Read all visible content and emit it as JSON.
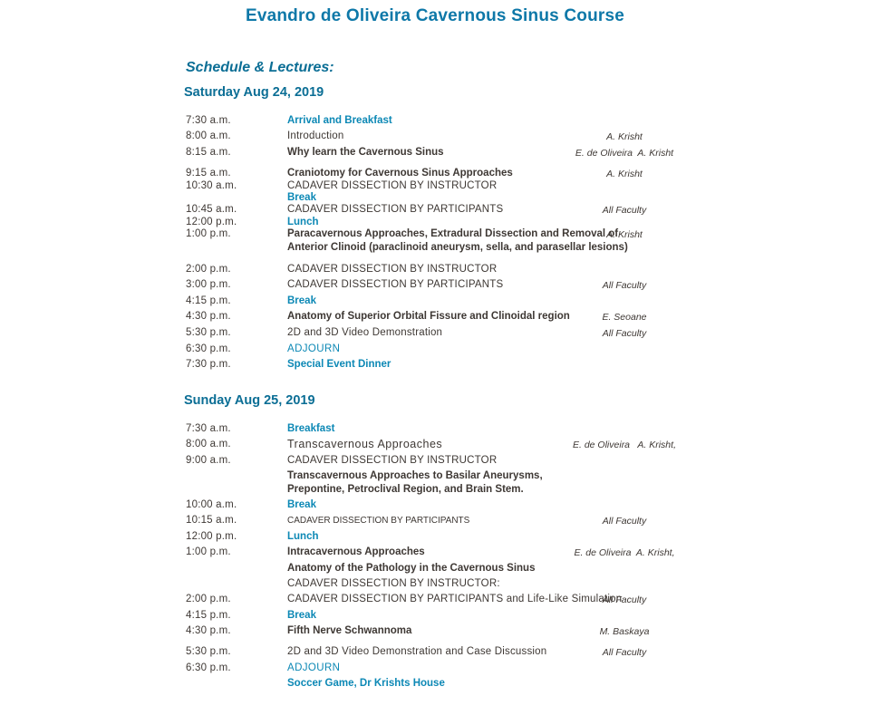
{
  "header": {
    "title": "Evandro de Oliveira Cavernous Sinus Course",
    "subtitle": "Schedule & Lectures:"
  },
  "colors": {
    "title_teal": "#0E78A8",
    "heading_teal": "#0B6E95",
    "accent_teal": "#0C88B5",
    "body_text": "#3E3834"
  },
  "days": [
    {
      "heading": "Saturday Aug 24, 2019",
      "rows": [
        {
          "time": "7:30 a.m.",
          "lines": [
            {
              "text": "Arrival and Breakfast",
              "style": "tealBold"
            }
          ],
          "faculty": ""
        },
        {
          "time": "8:00 a.m.",
          "lines": [
            {
              "text": "Introduction",
              "style": "plain"
            }
          ],
          "faculty": "A. Krisht"
        },
        {
          "time": "8:15 a.m.",
          "lines": [
            {
              "text": "Why learn the Cavernous Sinus",
              "style": "bold"
            }
          ],
          "faculty": "E. de Oliveira  A. Krisht"
        },
        {
          "time": "9:15 a.m.",
          "lines": [
            {
              "text": "Craniotomy for Cavernous Sinus Approaches",
              "style": "bold"
            }
          ],
          "faculty": "A. Krisht",
          "spacing": "gap"
        },
        {
          "time": "10:30 a.m.",
          "lines": [
            {
              "text": "CADAVER DISSECTION BY INSTRUCTOR",
              "style": "plain"
            }
          ],
          "faculty": "",
          "spacing": "tight"
        },
        {
          "time": "",
          "lines": [
            {
              "text": "Break",
              "style": "tealBold"
            }
          ],
          "faculty": "",
          "spacing": "tight"
        },
        {
          "time": "10:45 a.m.",
          "lines": [
            {
              "text": "CADAVER DISSECTION BY PARTICIPANTS",
              "style": "plain"
            }
          ],
          "faculty": "All Faculty",
          "spacing": "tight"
        },
        {
          "time": "12:00 p.m.",
          "lines": [
            {
              "text": "Lunch",
              "style": "tealBold"
            }
          ],
          "faculty": "",
          "spacing": "tight"
        },
        {
          "time": "1:00 p.m.",
          "lines": [
            {
              "text": "Paracavernous Approaches, Extradural Dissection and Removal of",
              "style": "bold"
            },
            {
              "text": "Anterior Clinoid (paraclinoid aneurysm, sella, and parasellar lesions)",
              "style": "bold"
            }
          ],
          "faculty": "A. Krisht",
          "spacing": "tight"
        },
        {
          "time": "2:00 p.m.",
          "lines": [
            {
              "text": "CADAVER DISSECTION BY INSTRUCTOR",
              "style": "plain"
            }
          ],
          "faculty": "",
          "spacing": "gap-lg"
        },
        {
          "time": "3:00 p.m.",
          "lines": [
            {
              "text": "CADAVER DISSECTION BY PARTICIPANTS",
              "style": "plain"
            }
          ],
          "faculty": "All Faculty"
        },
        {
          "time": "4:15 p.m.",
          "lines": [
            {
              "text": "Break",
              "style": "tealBold"
            }
          ],
          "faculty": ""
        },
        {
          "time": "4:30 p.m.",
          "lines": [
            {
              "text": "Anatomy of Superior Orbital Fissure and Clinoidal region",
              "style": "bold"
            }
          ],
          "faculty": "E. Seoane"
        },
        {
          "time": "5:30 p.m.",
          "lines": [
            {
              "text": "2D and 3D Video Demonstration",
              "style": "plain"
            }
          ],
          "faculty": "All Faculty"
        },
        {
          "time": "6:30 p.m.",
          "lines": [
            {
              "text": "ADJOURN",
              "style": "teal"
            }
          ],
          "faculty": ""
        },
        {
          "time": "7:30 p.m.",
          "lines": [
            {
              "text": "Special Event Dinner",
              "style": "tealSemi"
            }
          ],
          "faculty": ""
        }
      ]
    },
    {
      "heading": "Sunday Aug 25, 2019",
      "rows": [
        {
          "time": "7:30 a.m.",
          "lines": [
            {
              "text": "Breakfast",
              "style": "tealBold"
            }
          ],
          "faculty": ""
        },
        {
          "time": "8:00 a.m.",
          "lines": [
            {
              "text": "Transcavernous Approaches",
              "style": "semiSpaced"
            }
          ],
          "faculty": "E. de Oliveira   A. Krisht,"
        },
        {
          "time": "9:00 a.m.",
          "lines": [
            {
              "text": "CADAVER DISSECTION BY INSTRUCTOR",
              "style": "plain"
            }
          ],
          "faculty": ""
        },
        {
          "time": "",
          "lines": [
            {
              "text": "Transcavernous Approaches to Basilar Aneurysms,",
              "style": "bold"
            },
            {
              "text": "Prepontine, Petroclival Region, and Brain Stem.",
              "style": "bold"
            }
          ],
          "faculty": ""
        },
        {
          "time": "10:00 a.m.",
          "lines": [
            {
              "text": "Break",
              "style": "tealBold"
            }
          ],
          "faculty": ""
        },
        {
          "time": "10:15 a.m.",
          "lines": [
            {
              "text": "CADAVER DISSECTION BY PARTICIPANTS",
              "style": "capsSmall"
            }
          ],
          "faculty": "All Faculty"
        },
        {
          "time": "12:00 p.m.",
          "lines": [
            {
              "text": "Lunch",
              "style": "tealBold"
            }
          ],
          "faculty": ""
        },
        {
          "time": "1:00 p.m.",
          "lines": [
            {
              "text": "Intracavernous Approaches",
              "style": "bold"
            }
          ],
          "faculty": "E. de Oliveira  A. Krisht,"
        },
        {
          "time": "",
          "lines": [
            {
              "text": "Anatomy of the Pathology in the Cavernous Sinus",
              "style": "bold"
            }
          ],
          "faculty": ""
        },
        {
          "time": "",
          "lines": [
            {
              "text": "CADAVER DISSECTION BY INSTRUCTOR:",
              "style": "plain"
            }
          ],
          "faculty": ""
        },
        {
          "time": "2:00 p.m.",
          "lines": [
            {
              "text": "CADAVER DISSECTION BY PARTICIPANTS and Life-Like Simulation",
              "style": "plain"
            }
          ],
          "faculty": "All Faculty"
        },
        {
          "time": "4:15 p.m.",
          "lines": [
            {
              "text": "Break",
              "style": "tealBold"
            }
          ],
          "faculty": ""
        },
        {
          "time": "4:30 p.m.",
          "lines": [
            {
              "text": "Fifth Nerve Schwannoma",
              "style": "bold"
            }
          ],
          "faculty": "M. Baskaya"
        },
        {
          "time": "5:30 p.m.",
          "lines": [
            {
              "text": "2D and 3D Video Demonstration and Case Discussion",
              "style": "plain"
            }
          ],
          "faculty": "All Faculty",
          "spacing": "gap"
        },
        {
          "time": "6:30 p.m.",
          "lines": [
            {
              "text": "ADJOURN",
              "style": "teal"
            }
          ],
          "faculty": ""
        },
        {
          "time": "",
          "lines": [
            {
              "text": "Soccer Game, Dr Krishts House",
              "style": "tealSemi"
            }
          ],
          "faculty": ""
        }
      ]
    }
  ]
}
